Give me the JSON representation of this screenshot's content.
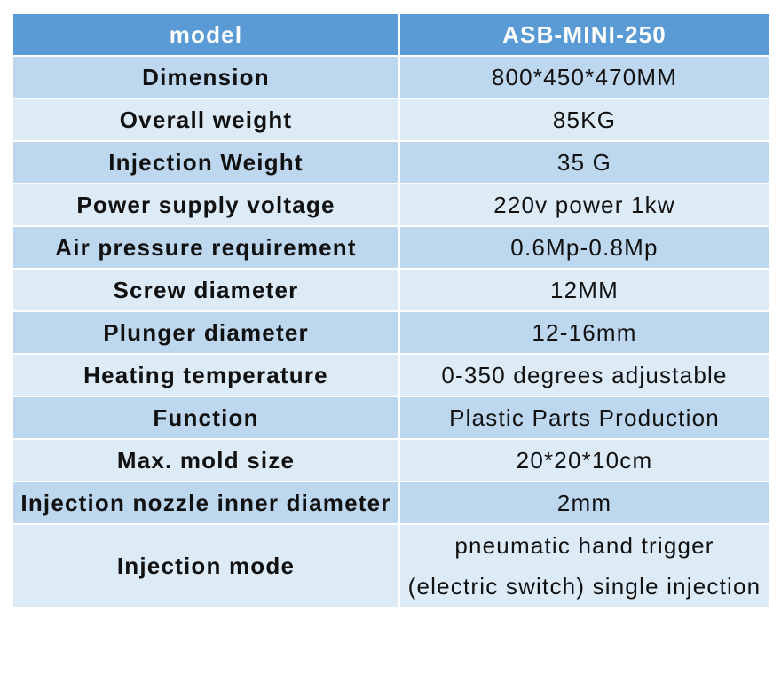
{
  "table": {
    "header": [
      "model",
      "ASB-MINI-250"
    ],
    "rows": [
      [
        "Dimension",
        "800*450*470MM"
      ],
      [
        "Overall weight",
        "85KG"
      ],
      [
        "Injection Weight",
        "35 G"
      ],
      [
        "Power supply voltage",
        "220v power 1kw"
      ],
      [
        "Air pressure requirement",
        "0.6Mp-0.8Mp"
      ],
      [
        "Screw diameter",
        "12MM"
      ],
      [
        "Plunger diameter",
        "12-16mm"
      ],
      [
        "Heating temperature",
        "0-350 degrees adjustable"
      ],
      [
        "Function",
        "Plastic Parts Production"
      ],
      [
        "Max. mold size",
        "20*20*10cm"
      ],
      [
        "Injection nozzle inner diameter",
        "2mm"
      ],
      [
        "Injection mode",
        "pneumatic hand trigger (electric switch) single injection"
      ]
    ]
  }
}
